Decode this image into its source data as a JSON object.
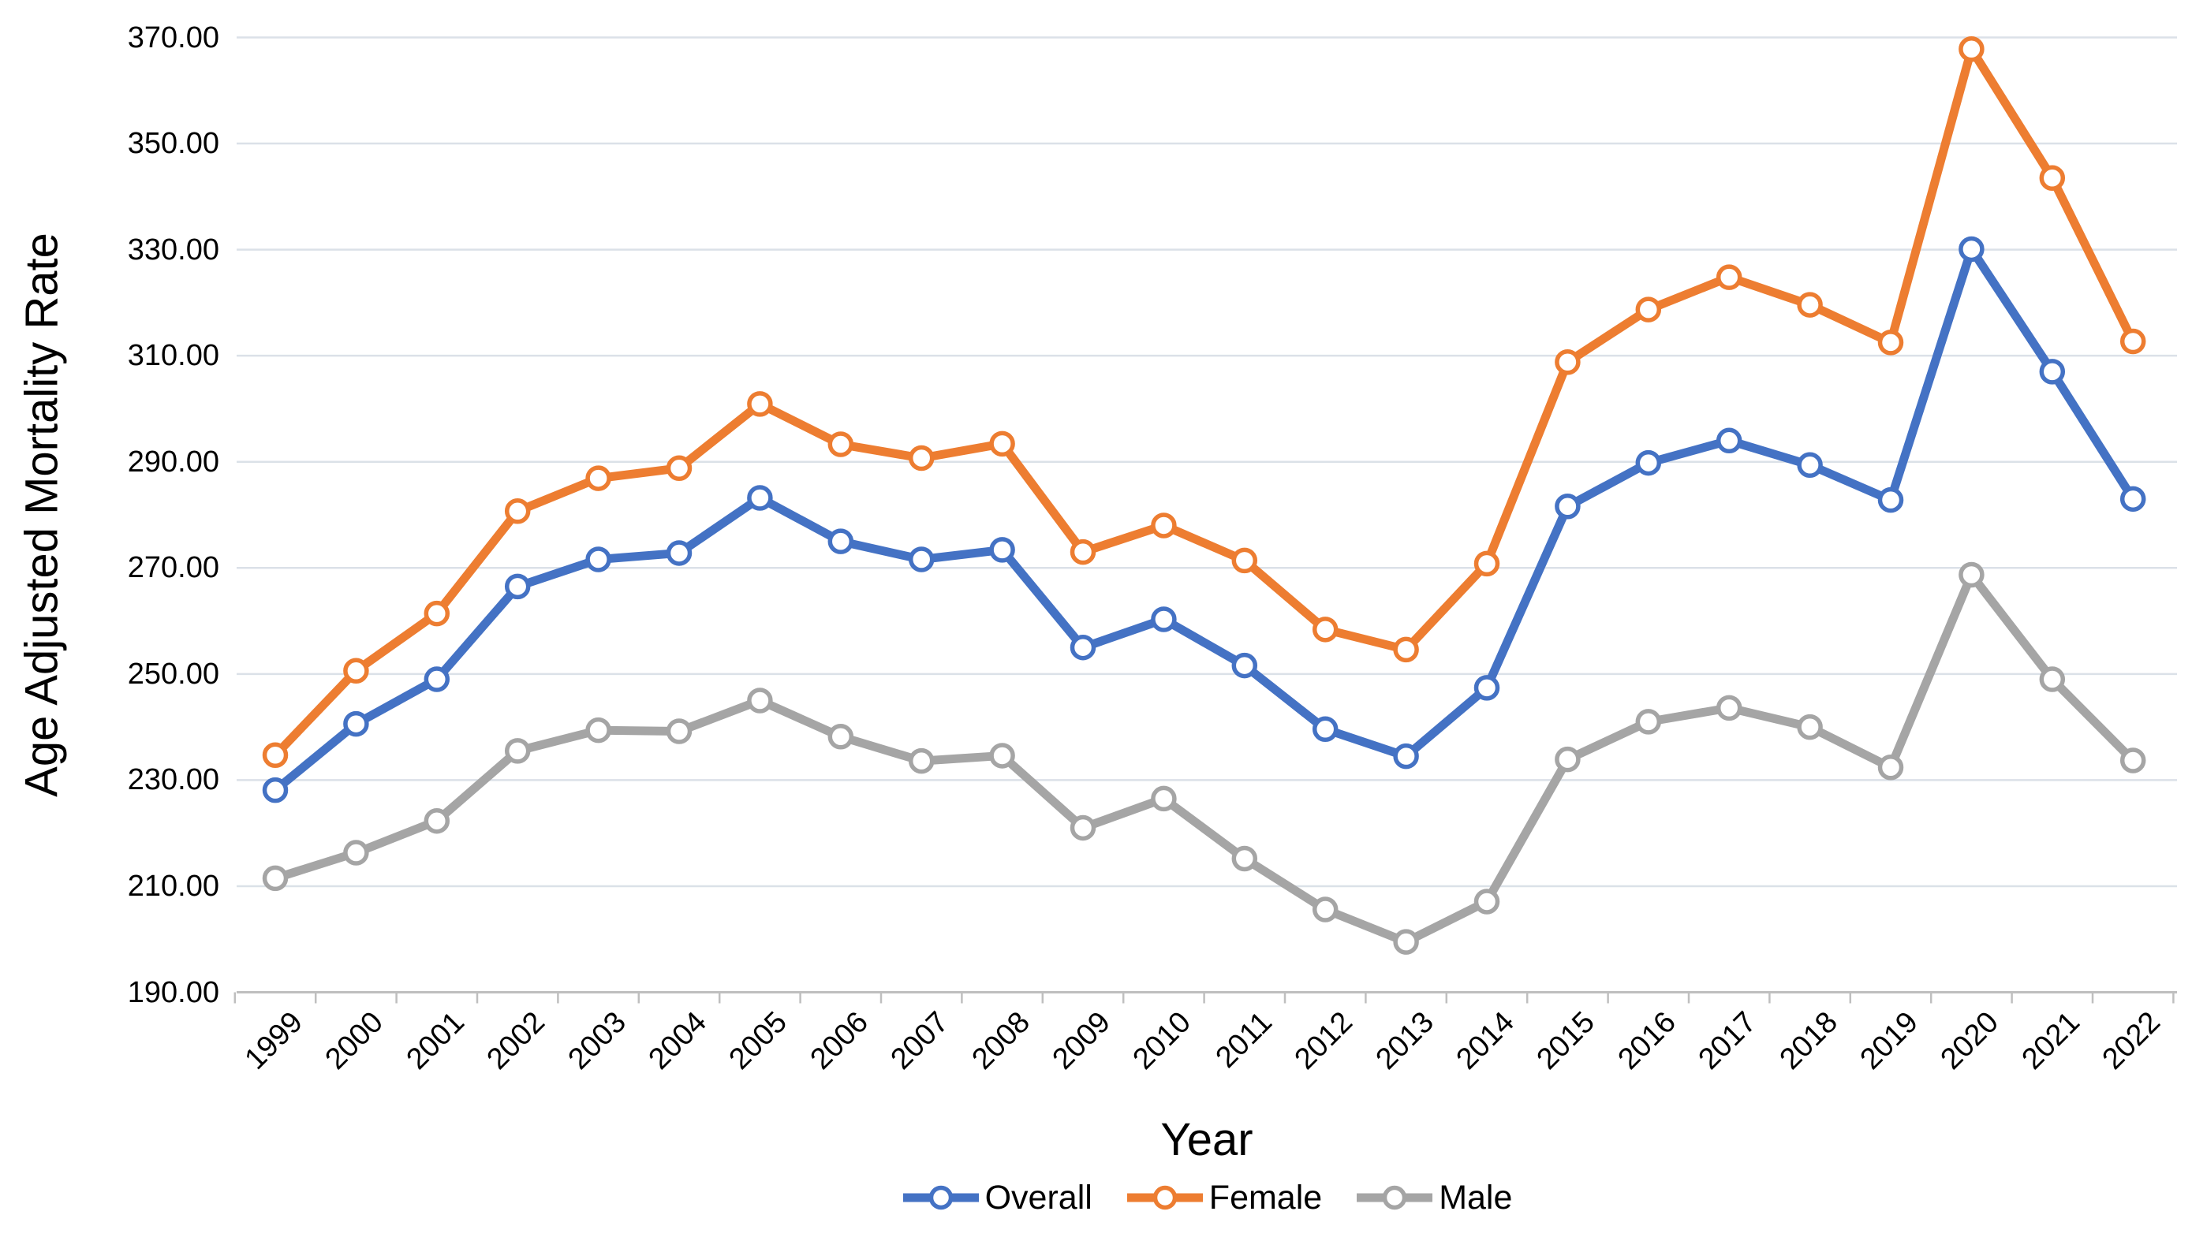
{
  "chart_data": {
    "type": "line",
    "title": "",
    "xlabel": "Year",
    "ylabel": "Age Adjusted Mortality Rate",
    "x": [
      "1999",
      "2000",
      "2001",
      "2002",
      "2003",
      "2004",
      "2005",
      "2006",
      "2007",
      "2008",
      "2009",
      "2010",
      "2011",
      "2012",
      "2013",
      "2014",
      "2015",
      "2016",
      "2017",
      "2018",
      "2019",
      "2020",
      "2021",
      "2022"
    ],
    "series": [
      {
        "name": "Overall",
        "color": "#4472C4",
        "values": [
          228.1,
          240.6,
          249.0,
          266.5,
          271.6,
          272.8,
          283.2,
          275.0,
          271.6,
          273.4,
          255.0,
          260.3,
          251.6,
          239.6,
          234.5,
          247.4,
          281.6,
          289.8,
          294.0,
          289.4,
          282.8,
          330.1,
          307.0,
          283.0
        ]
      },
      {
        "name": "Female",
        "color": "#ED7D31",
        "values": [
          234.7,
          250.6,
          261.4,
          280.7,
          286.9,
          288.8,
          300.9,
          293.3,
          290.7,
          293.4,
          273.0,
          278.0,
          271.4,
          258.4,
          254.6,
          270.8,
          308.8,
          318.7,
          324.8,
          319.6,
          312.5,
          367.8,
          343.5,
          312.7
        ]
      },
      {
        "name": "Male",
        "color": "#A5A5A5",
        "values": [
          211.5,
          216.3,
          222.3,
          235.5,
          239.4,
          239.2,
          245.0,
          238.2,
          233.6,
          234.6,
          221.0,
          226.5,
          215.2,
          205.6,
          199.5,
          207.1,
          233.9,
          241.0,
          243.6,
          240.0,
          232.4,
          268.7,
          249.0,
          233.7
        ]
      }
    ],
    "ylim": [
      190,
      370
    ],
    "ytick_step": 20,
    "ytick_format_decimals": 2,
    "grid": "horizontal",
    "gridline_color": "#dbe1e8",
    "axis_line_color": "#bfbfbf",
    "legend_position": "bottom",
    "marker": "open-circle"
  }
}
